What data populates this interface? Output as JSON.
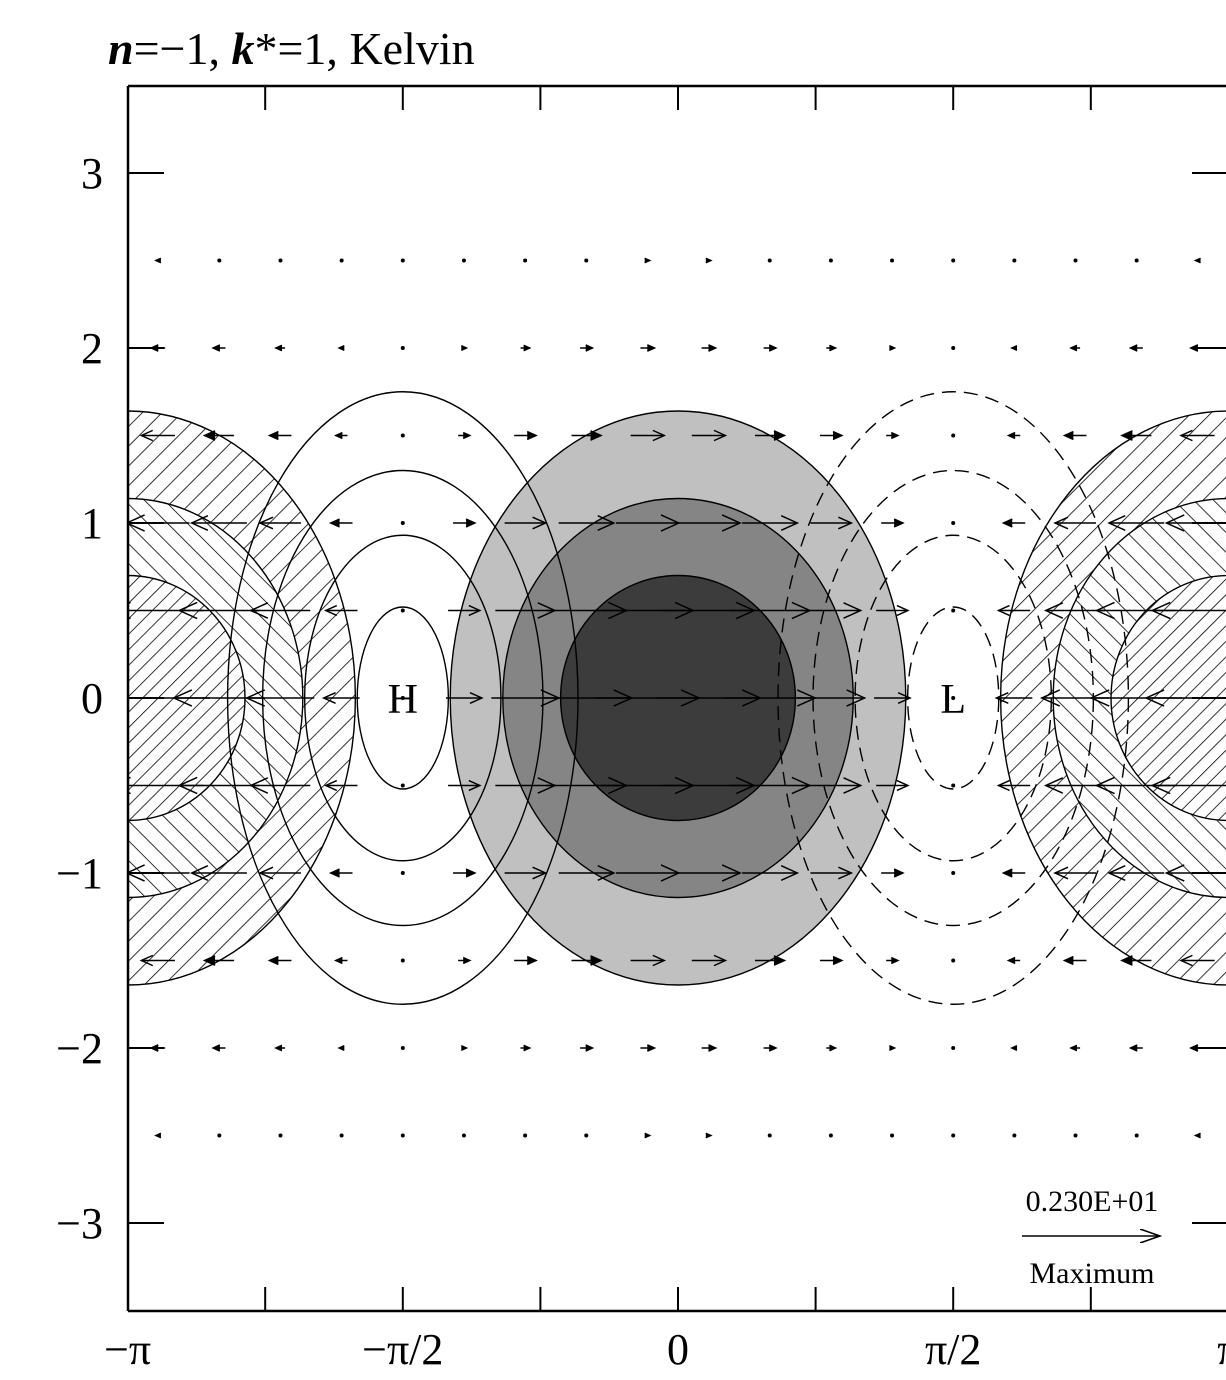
{
  "title": {
    "n_part": "n",
    "n_eq": "=−1, ",
    "k_part": "k",
    "k_eq": "*=1, ",
    "wave": "Kelvin"
  },
  "chart_data": {
    "type": "vector-field-contour",
    "title": "n=−1, k*=1, Kelvin",
    "xlabel": "",
    "ylabel": "",
    "xlim": [
      -3.14159,
      3.14159
    ],
    "ylim": [
      -3.5,
      3.5
    ],
    "x_tick_labels": [
      "−π",
      "−π/2",
      "0",
      "π/2",
      "π"
    ],
    "x_tick_values": [
      -3.14159,
      -1.5708,
      0,
      1.5708,
      3.14159
    ],
    "y_tick_labels": [
      "3",
      "2",
      "1",
      "0",
      "−1",
      "−2",
      "−3"
    ],
    "y_tick_values": [
      3,
      2,
      1,
      0,
      -1,
      -2,
      -3
    ],
    "grid": false,
    "annotations": [
      {
        "text": "H",
        "x": -1.5708,
        "y": 0
      },
      {
        "text": "L",
        "x": 1.5708,
        "y": 0
      }
    ],
    "vector_scale": {
      "value": "0.230E+01",
      "label": "Maximum"
    },
    "vector_field": {
      "rows_y": [
        2.5,
        2,
        1.5,
        1,
        0.5,
        0,
        -0.5,
        -1,
        -1.5,
        -2,
        -2.5
      ],
      "form": "u ∝ cos(x)·exp(−y²/2), v = 0",
      "max_magnitude": 2.3
    },
    "shaded_regions": {
      "description": "divergence shaded; positive at x=0 (grey levels), negative at x=±π (hatched)",
      "levels": [
        1,
        2,
        3
      ]
    },
    "pressure_contours": {
      "high_center": [
        -1.5708,
        0
      ],
      "low_center": [
        1.5708,
        0
      ],
      "negative_dashed": true
    }
  },
  "colors": {
    "shade_light": "#c0c0c0",
    "shade_mid": "#858585",
    "shade_dark": "#3c3c3c",
    "line": "#000000"
  }
}
